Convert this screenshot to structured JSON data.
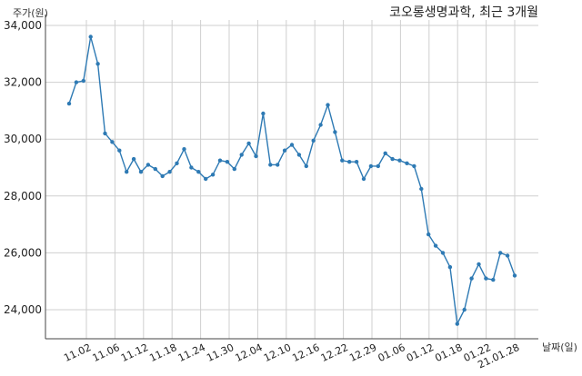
{
  "chart_data": {
    "type": "line",
    "title": "코오롱생명과학, 최근 3개월",
    "ylabel": "주가(원)",
    "xlabel": "날짜(일)",
    "ylim": [
      23000,
      34100
    ],
    "yticks": [
      24000,
      26000,
      28000,
      30000,
      32000,
      34000
    ],
    "ytick_labels": [
      "24,000",
      "26,000",
      "28,000",
      "30,000",
      "32,000",
      "34,000"
    ],
    "xticks": [
      "11.02",
      "11.06",
      "11.12",
      "11.18",
      "11.24",
      "11.30",
      "12.04",
      "12.10",
      "12.16",
      "12.22",
      "12.29",
      "01.06",
      "01.12",
      "01.18",
      "01.22",
      "21.01.28"
    ],
    "grid": true,
    "color": "#2e7ab4",
    "series": [
      {
        "values": [
          31250,
          32000,
          32050,
          33600,
          32650,
          30200,
          29900,
          29600,
          28850,
          29300,
          28850,
          29100,
          28950,
          28700,
          28850,
          29150,
          29650,
          29000,
          28850,
          28600,
          28750,
          29250,
          29200,
          28950,
          29450,
          29850,
          29400,
          30900,
          29100,
          29100,
          29600,
          29800,
          29450,
          29050,
          29950,
          30500,
          31200,
          30250,
          29250,
          29200,
          29200,
          28600,
          29050,
          29050,
          29500,
          29300,
          29250,
          29150,
          29050,
          28250,
          26650,
          26250,
          26000,
          25500,
          23500,
          24000,
          25100,
          25600,
          25100,
          25050,
          26000,
          25900,
          25200
        ]
      }
    ]
  }
}
